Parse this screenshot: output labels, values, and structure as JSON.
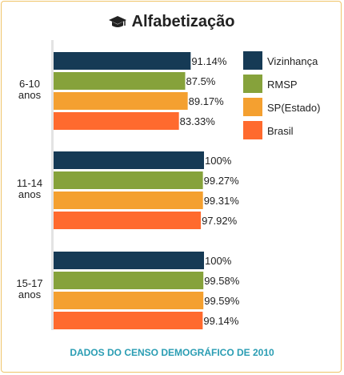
{
  "header": {
    "title": "Alfabetização",
    "icon": "graduation-cap-icon"
  },
  "footer": {
    "source": "DADOS DO CENSO DEMOGRÁFICO DE 2010"
  },
  "chart_data": {
    "type": "bar",
    "orientation": "horizontal",
    "categories": [
      "6-10 anos",
      "11-14 anos",
      "15-17 anos"
    ],
    "xlim": [
      0,
      100
    ],
    "grid": false,
    "legend_position": "top-right",
    "series": [
      {
        "name": "Vizinhança",
        "color": "#163a55",
        "values": [
          91.14,
          100,
          100
        ],
        "labels": [
          "91.14%",
          "100%",
          "100%"
        ]
      },
      {
        "name": "RMSP",
        "color": "#86a23b",
        "values": [
          87.5,
          99.27,
          99.58
        ],
        "labels": [
          "87.5%",
          "99.27%",
          "99.58%"
        ]
      },
      {
        "name": "SP(Estado)",
        "color": "#f4a030",
        "values": [
          89.17,
          99.31,
          99.59
        ],
        "labels": [
          "89.17%",
          "99.31%",
          "99.59%"
        ]
      },
      {
        "name": "Brasil",
        "color": "#ff6a2e",
        "values": [
          83.33,
          97.92,
          99.14
        ],
        "labels": [
          "83.33%",
          "97.92%",
          "99.14%"
        ]
      }
    ]
  }
}
